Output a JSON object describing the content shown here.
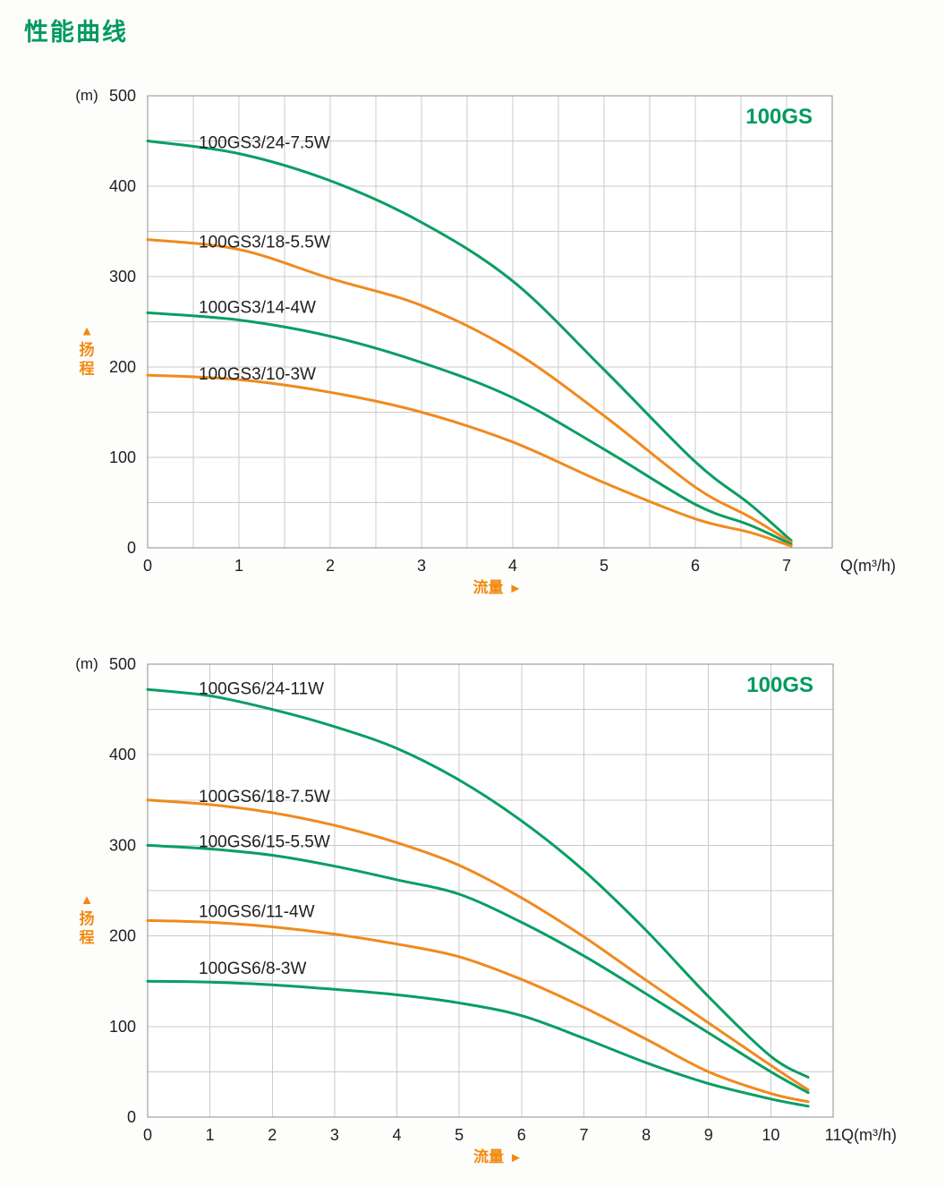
{
  "page": {
    "title": "性能曲线"
  },
  "colors": {
    "title_green": "#009a5e",
    "curve_green": "#0a9e63",
    "curve_orange": "#f08a1e",
    "label_orange": "#f28a10",
    "grid": "#cbcbcb",
    "axis": "#8e8e8e",
    "text": "#1f1f1f"
  },
  "chart_data": [
    {
      "type": "line",
      "title": "100GS",
      "y_unit": "(m)",
      "x_unit": "Q(m³/h)",
      "x_axis_label": "流量",
      "y_axis_label": "扬程",
      "arrow_right": "►",
      "arrow_up": "▲",
      "xlim": [
        0,
        7.5
      ],
      "ylim": [
        0,
        500
      ],
      "x_ticks": [
        0,
        1,
        2,
        3,
        4,
        5,
        6,
        7
      ],
      "y_ticks": [
        500,
        400,
        300,
        200,
        100,
        0
      ],
      "x_grid_step": 0.5,
      "y_grid_step": 50,
      "grid": true,
      "legend_position": "inline-labels",
      "series": [
        {
          "name": "100GS3/24-7.5W",
          "color_key": "green",
          "points": [
            [
              0,
              450
            ],
            [
              1,
              436
            ],
            [
              2,
              406
            ],
            [
              3,
              360
            ],
            [
              4,
              295
            ],
            [
              5,
              197
            ],
            [
              6,
              95
            ],
            [
              6.6,
              48
            ],
            [
              7.05,
              8
            ]
          ]
        },
        {
          "name": "100GS3/18-5.5W",
          "color_key": "orange",
          "points": [
            [
              0,
              341
            ],
            [
              1,
              330
            ],
            [
              2,
              298
            ],
            [
              3,
              268
            ],
            [
              4,
              218
            ],
            [
              5,
              146
            ],
            [
              6,
              67
            ],
            [
              6.6,
              34
            ],
            [
              7.05,
              6
            ]
          ]
        },
        {
          "name": "100GS3/14-4W",
          "color_key": "green",
          "points": [
            [
              0,
              260
            ],
            [
              1,
              252
            ],
            [
              2,
              234
            ],
            [
              3,
              205
            ],
            [
              4,
              166
            ],
            [
              5,
              109
            ],
            [
              6,
              48
            ],
            [
              6.6,
              25
            ],
            [
              7.05,
              4
            ]
          ]
        },
        {
          "name": "100GS3/10-3W",
          "color_key": "orange",
          "points": [
            [
              0,
              191
            ],
            [
              1,
              186
            ],
            [
              2,
              172
            ],
            [
              3,
              150
            ],
            [
              4,
              117
            ],
            [
              5,
              72
            ],
            [
              6,
              32
            ],
            [
              6.6,
              17
            ],
            [
              7.05,
              2
            ]
          ]
        }
      ]
    },
    {
      "type": "line",
      "title": "100GS",
      "y_unit": "(m)",
      "x_unit": "Q(m³/h)",
      "x_axis_label": "流量",
      "y_axis_label": "扬程",
      "arrow_right": "►",
      "arrow_up": "▲",
      "xlim": [
        0,
        11
      ],
      "ylim": [
        0,
        500
      ],
      "x_ticks": [
        0,
        1,
        2,
        3,
        4,
        5,
        6,
        7,
        8,
        9,
        10,
        11
      ],
      "y_ticks": [
        500,
        400,
        300,
        200,
        100,
        0
      ],
      "x_grid_step": 1,
      "y_grid_step": 50,
      "grid": true,
      "legend_position": "inline-labels",
      "series": [
        {
          "name": "100GS6/24-11W",
          "color_key": "green",
          "points": [
            [
              0,
              472
            ],
            [
              1,
              465
            ],
            [
              2,
              450
            ],
            [
              3,
              431
            ],
            [
              4,
              407
            ],
            [
              5,
              372
            ],
            [
              6,
              327
            ],
            [
              7,
              272
            ],
            [
              8,
              206
            ],
            [
              9,
              133
            ],
            [
              10,
              67
            ],
            [
              10.6,
              44
            ]
          ]
        },
        {
          "name": "100GS6/18-7.5W",
          "color_key": "orange",
          "points": [
            [
              0,
              350
            ],
            [
              1,
              345
            ],
            [
              2,
              336
            ],
            [
              3,
              322
            ],
            [
              4,
              303
            ],
            [
              5,
              278
            ],
            [
              6,
              242
            ],
            [
              7,
              199
            ],
            [
              8,
              151
            ],
            [
              9,
              104
            ],
            [
              10,
              57
            ],
            [
              10.6,
              30
            ]
          ]
        },
        {
          "name": "100GS6/15-5.5W",
          "color_key": "green",
          "points": [
            [
              0,
              300
            ],
            [
              1,
              296
            ],
            [
              2,
              289
            ],
            [
              3,
              277
            ],
            [
              4,
              262
            ],
            [
              5,
              246
            ],
            [
              6,
              215
            ],
            [
              7,
              178
            ],
            [
              8,
              136
            ],
            [
              9,
              93
            ],
            [
              10,
              50
            ],
            [
              10.6,
              27
            ]
          ]
        },
        {
          "name": "100GS6/11-4W",
          "color_key": "orange",
          "points": [
            [
              0,
              217
            ],
            [
              1,
              215
            ],
            [
              2,
              210
            ],
            [
              3,
              202
            ],
            [
              4,
              191
            ],
            [
              5,
              177
            ],
            [
              6,
              152
            ],
            [
              7,
              121
            ],
            [
              8,
              86
            ],
            [
              9,
              50
            ],
            [
              10,
              26
            ],
            [
              10.6,
              17
            ]
          ]
        },
        {
          "name": "100GS6/8-3W",
          "color_key": "green",
          "points": [
            [
              0,
              150
            ],
            [
              1,
              149
            ],
            [
              2,
              146
            ],
            [
              3,
              141
            ],
            [
              4,
              135
            ],
            [
              5,
              126
            ],
            [
              6,
              112
            ],
            [
              7,
              87
            ],
            [
              8,
              60
            ],
            [
              9,
              37
            ],
            [
              10,
              20
            ],
            [
              10.6,
              12
            ]
          ]
        }
      ]
    }
  ]
}
